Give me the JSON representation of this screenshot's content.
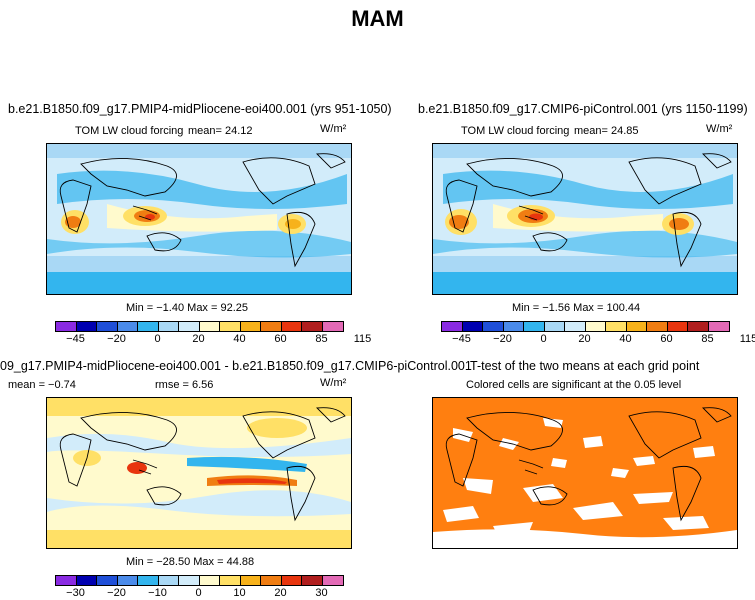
{
  "title": "MAM",
  "panels": {
    "a": {
      "title": "b.e21.B1850.f09_g17.PMIP4-midPliocene-eoi400.001 (yrs 951-1050)",
      "variable": "TOM LW cloud forcing",
      "mean": "mean=   24.12",
      "units": "W/m²",
      "minmax": "Min =  −1.40  Max =   92.25"
    },
    "b": {
      "title": "b.e21.B1850.f09_g17.CMIP6-piControl.001 (yrs 1150-1199)",
      "variable": "TOM LW cloud forcing",
      "mean": "mean=   24.85",
      "units": "W/m²",
      "minmax": "Min =  −1.56  Max =  100.44"
    },
    "c": {
      "title": "09_g17.PMIP4-midPliocene-eoi400.001 - b.e21.B1850.f09_g17.CMIP6-piControl.001",
      "mean": "mean =   −0.74",
      "rmse": "rmse =    6.56",
      "units": "W/m²",
      "minmax": "Min = −28.50  Max =   44.88"
    },
    "d": {
      "title": "T-test of the two means at each grid point",
      "subtitle": "Colored cells are significant at the 0.05 level"
    }
  },
  "colorbar_abs": {
    "labels": [
      "−45",
      "−20",
      "0",
      "20",
      "40",
      "60",
      "85",
      "115"
    ],
    "colors": [
      "#8a2be2",
      "#0000b0",
      "#1f4fd8",
      "#4b8bea",
      "#33b5ee",
      "#a9d8f5",
      "#d2ecfa",
      "#fffacd",
      "#ffe066",
      "#f7b21b",
      "#f07d12",
      "#e8350e",
      "#b01e1e",
      "#e36ab6"
    ]
  },
  "colorbar_diff": {
    "labels": [
      "−30",
      "−20",
      "−10",
      "0",
      "10",
      "20",
      "30"
    ],
    "colors": [
      "#8a2be2",
      "#0000b0",
      "#1f4fd8",
      "#4b8bea",
      "#33b5ee",
      "#a9d8f5",
      "#d2ecfa",
      "#fffacd",
      "#ffe066",
      "#f7b21b",
      "#f07d12",
      "#e8350e",
      "#b01e1e",
      "#e36ab6"
    ]
  },
  "colors": {
    "significant": "#ff7f10",
    "nonsignificant": "#ffffff"
  }
}
